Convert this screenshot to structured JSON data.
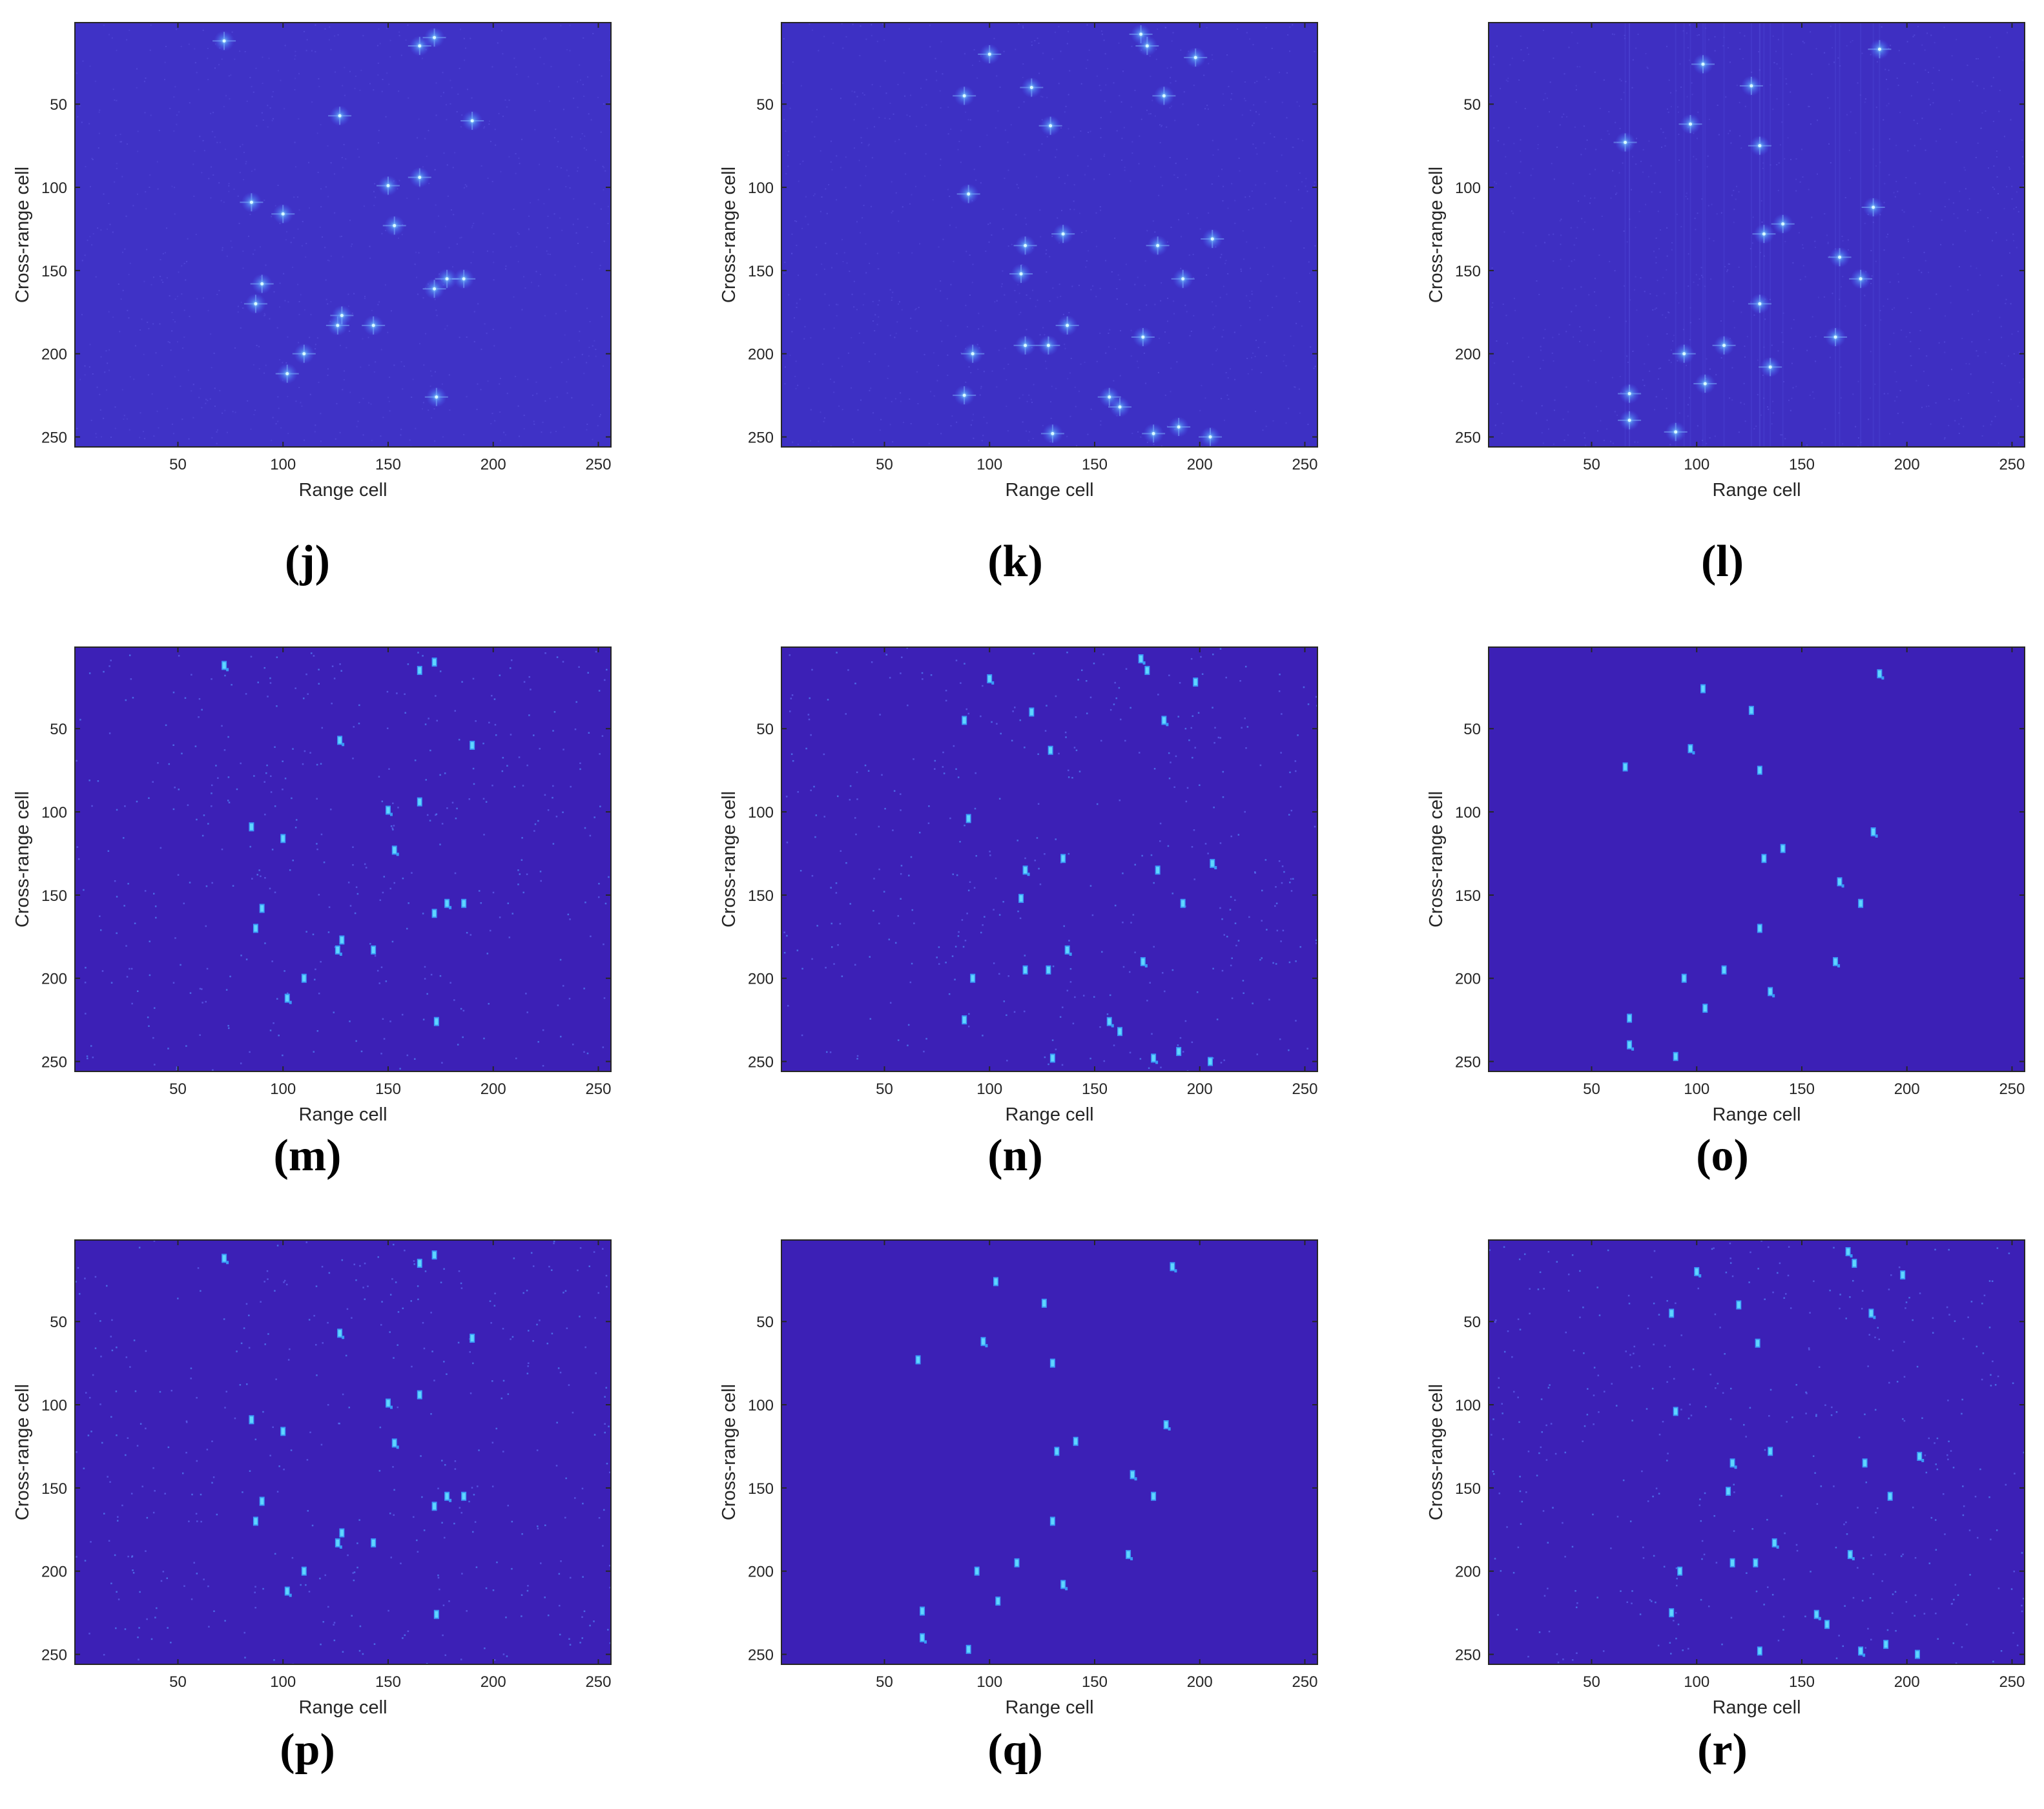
{
  "figure": {
    "colors": {
      "background_j": "#3f32c6",
      "background_k": "#3d30c4",
      "background_l": "#3e2fc2",
      "background_sparse": "#3c20b6",
      "scatter_bright": "#5fd6ff",
      "scatter_mid": "#3a98f6",
      "scatter_glow": "#6f8cff",
      "frame": "#262626"
    }
  },
  "chart_data": [
    {
      "id": "j",
      "label": "(j)",
      "type": "heatmap",
      "style": "diffuse",
      "xlabel": "Range cell",
      "ylabel": "Cross-range cell",
      "xlim": [
        1,
        256
      ],
      "ylim": [
        256,
        1
      ],
      "xticks": [
        50,
        100,
        150,
        200,
        250
      ],
      "yticks": [
        50,
        100,
        150,
        200,
        250
      ],
      "scatterers": [
        [
          72,
          12
        ],
        [
          165,
          15
        ],
        [
          172,
          10
        ],
        [
          127,
          57
        ],
        [
          190,
          60
        ],
        [
          165,
          94
        ],
        [
          150,
          99
        ],
        [
          85,
          109
        ],
        [
          100,
          116
        ],
        [
          153,
          123
        ],
        [
          90,
          158
        ],
        [
          172,
          161
        ],
        [
          178,
          155
        ],
        [
          186,
          155
        ],
        [
          87,
          170
        ],
        [
          126,
          183
        ],
        [
          143,
          183
        ],
        [
          110,
          200
        ],
        [
          102,
          212
        ],
        [
          173,
          226
        ],
        [
          128,
          177
        ]
      ]
    },
    {
      "id": "k",
      "label": "(k)",
      "type": "heatmap",
      "style": "diffuse",
      "xlabel": "Range cell",
      "ylabel": "Cross-range cell",
      "xlim": [
        1,
        256
      ],
      "ylim": [
        256,
        1
      ],
      "xticks": [
        50,
        100,
        150,
        200,
        250
      ],
      "yticks": [
        50,
        100,
        150,
        200,
        250
      ],
      "scatterers": [
        [
          172,
          8
        ],
        [
          175,
          15
        ],
        [
          198,
          22
        ],
        [
          100,
          20
        ],
        [
          120,
          40
        ],
        [
          88,
          45
        ],
        [
          183,
          45
        ],
        [
          129,
          63
        ],
        [
          90,
          104
        ],
        [
          117,
          135
        ],
        [
          135,
          128
        ],
        [
          180,
          135
        ],
        [
          206,
          131
        ],
        [
          192,
          155
        ],
        [
          115,
          152
        ],
        [
          137,
          183
        ],
        [
          117,
          195
        ],
        [
          128,
          195
        ],
        [
          173,
          190
        ],
        [
          92,
          200
        ],
        [
          88,
          225
        ],
        [
          157,
          226
        ],
        [
          162,
          232
        ],
        [
          130,
          248
        ],
        [
          178,
          248
        ],
        [
          190,
          244
        ],
        [
          205,
          250
        ]
      ]
    },
    {
      "id": "l",
      "label": "(l)",
      "type": "heatmap",
      "style": "diffuse",
      "xlabel": "Range cell",
      "ylabel": "Cross-range cell",
      "xlim": [
        1,
        256
      ],
      "ylim": [
        256,
        1
      ],
      "xticks": [
        50,
        100,
        150,
        200,
        250
      ],
      "yticks": [
        50,
        100,
        150,
        200,
        250
      ],
      "scatterers": [
        [
          187,
          17
        ],
        [
          103,
          26
        ],
        [
          126,
          39
        ],
        [
          97,
          62
        ],
        [
          66,
          73
        ],
        [
          130,
          75
        ],
        [
          184,
          112
        ],
        [
          132,
          128
        ],
        [
          141,
          122
        ],
        [
          168,
          142
        ],
        [
          178,
          155
        ],
        [
          130,
          170
        ],
        [
          166,
          190
        ],
        [
          113,
          195
        ],
        [
          94,
          200
        ],
        [
          135,
          208
        ],
        [
          104,
          218
        ],
        [
          68,
          224
        ],
        [
          68,
          240
        ],
        [
          90,
          247
        ]
      ]
    },
    {
      "id": "m",
      "label": "(m)",
      "type": "heatmap",
      "style": "sparse-noisy",
      "xlabel": "Range cell",
      "ylabel": "Cross-range cell",
      "xlim": [
        1,
        256
      ],
      "ylim": [
        256,
        1
      ],
      "xticks": [
        50,
        100,
        150,
        200,
        250
      ],
      "yticks": [
        50,
        100,
        150,
        200,
        250
      ],
      "scatterers": [
        [
          72,
          12
        ],
        [
          165,
          15
        ],
        [
          172,
          10
        ],
        [
          127,
          57
        ],
        [
          190,
          60
        ],
        [
          165,
          94
        ],
        [
          150,
          99
        ],
        [
          85,
          109
        ],
        [
          100,
          116
        ],
        [
          153,
          123
        ],
        [
          90,
          158
        ],
        [
          172,
          161
        ],
        [
          178,
          155
        ],
        [
          186,
          155
        ],
        [
          87,
          170
        ],
        [
          126,
          183
        ],
        [
          143,
          183
        ],
        [
          110,
          200
        ],
        [
          102,
          212
        ],
        [
          173,
          226
        ],
        [
          128,
          177
        ]
      ]
    },
    {
      "id": "n",
      "label": "(n)",
      "type": "heatmap",
      "style": "sparse-noisy",
      "xlabel": "Range cell",
      "ylabel": "Cross-range cell",
      "xlim": [
        1,
        256
      ],
      "ylim": [
        256,
        1
      ],
      "xticks": [
        50,
        100,
        150,
        200,
        250
      ],
      "yticks": [
        50,
        100,
        150,
        200,
        250
      ],
      "scatterers": [
        [
          172,
          8
        ],
        [
          175,
          15
        ],
        [
          198,
          22
        ],
        [
          100,
          20
        ],
        [
          120,
          40
        ],
        [
          88,
          45
        ],
        [
          183,
          45
        ],
        [
          129,
          63
        ],
        [
          90,
          104
        ],
        [
          117,
          135
        ],
        [
          135,
          128
        ],
        [
          180,
          135
        ],
        [
          206,
          131
        ],
        [
          192,
          155
        ],
        [
          115,
          152
        ],
        [
          137,
          183
        ],
        [
          117,
          195
        ],
        [
          128,
          195
        ],
        [
          173,
          190
        ],
        [
          92,
          200
        ],
        [
          88,
          225
        ],
        [
          157,
          226
        ],
        [
          162,
          232
        ],
        [
          130,
          248
        ],
        [
          178,
          248
        ],
        [
          190,
          244
        ],
        [
          205,
          250
        ]
      ]
    },
    {
      "id": "o",
      "label": "(o)",
      "type": "heatmap",
      "style": "sparse-clean",
      "xlabel": "Range cell",
      "ylabel": "Cross-range cell",
      "xlim": [
        1,
        256
      ],
      "ylim": [
        256,
        1
      ],
      "xticks": [
        50,
        100,
        150,
        200,
        250
      ],
      "yticks": [
        50,
        100,
        150,
        200,
        250
      ],
      "scatterers": [
        [
          187,
          17
        ],
        [
          103,
          26
        ],
        [
          126,
          39
        ],
        [
          97,
          62
        ],
        [
          66,
          73
        ],
        [
          130,
          75
        ],
        [
          184,
          112
        ],
        [
          132,
          128
        ],
        [
          141,
          122
        ],
        [
          168,
          142
        ],
        [
          178,
          155
        ],
        [
          130,
          170
        ],
        [
          166,
          190
        ],
        [
          113,
          195
        ],
        [
          94,
          200
        ],
        [
          135,
          208
        ],
        [
          104,
          218
        ],
        [
          68,
          224
        ],
        [
          68,
          240
        ],
        [
          90,
          247
        ]
      ]
    },
    {
      "id": "p",
      "label": "(p)",
      "type": "heatmap",
      "style": "sparse-noisy",
      "xlabel": "Range cell",
      "ylabel": "Cross-range cell",
      "xlim": [
        1,
        256
      ],
      "ylim": [
        256,
        1
      ],
      "xticks": [
        50,
        100,
        150,
        200,
        250
      ],
      "yticks": [
        50,
        100,
        150,
        200,
        250
      ],
      "scatterers": [
        [
          72,
          12
        ],
        [
          165,
          15
        ],
        [
          172,
          10
        ],
        [
          127,
          57
        ],
        [
          190,
          60
        ],
        [
          165,
          94
        ],
        [
          150,
          99
        ],
        [
          85,
          109
        ],
        [
          100,
          116
        ],
        [
          153,
          123
        ],
        [
          90,
          158
        ],
        [
          172,
          161
        ],
        [
          178,
          155
        ],
        [
          186,
          155
        ],
        [
          87,
          170
        ],
        [
          126,
          183
        ],
        [
          143,
          183
        ],
        [
          110,
          200
        ],
        [
          102,
          212
        ],
        [
          173,
          226
        ],
        [
          128,
          177
        ]
      ]
    },
    {
      "id": "q",
      "label": "(q)",
      "type": "heatmap",
      "style": "sparse-clean",
      "xlabel": "Range cell",
      "ylabel": "Cross-range cell",
      "xlim": [
        1,
        256
      ],
      "ylim": [
        256,
        1
      ],
      "xticks": [
        50,
        100,
        150,
        200,
        250
      ],
      "yticks": [
        50,
        100,
        150,
        200,
        250
      ],
      "scatterers": [
        [
          187,
          17
        ],
        [
          103,
          26
        ],
        [
          126,
          39
        ],
        [
          97,
          62
        ],
        [
          66,
          73
        ],
        [
          130,
          75
        ],
        [
          184,
          112
        ],
        [
          132,
          128
        ],
        [
          141,
          122
        ],
        [
          168,
          142
        ],
        [
          178,
          155
        ],
        [
          130,
          170
        ],
        [
          166,
          190
        ],
        [
          113,
          195
        ],
        [
          94,
          200
        ],
        [
          135,
          208
        ],
        [
          104,
          218
        ],
        [
          68,
          224
        ],
        [
          68,
          240
        ],
        [
          90,
          247
        ]
      ]
    },
    {
      "id": "r",
      "label": "(r)",
      "type": "heatmap",
      "style": "sparse-noisy",
      "xlabel": "Range cell",
      "ylabel": "Cross-range cell",
      "xlim": [
        1,
        256
      ],
      "ylim": [
        256,
        1
      ],
      "xticks": [
        50,
        100,
        150,
        200,
        250
      ],
      "yticks": [
        50,
        100,
        150,
        200,
        250
      ],
      "scatterers": [
        [
          172,
          8
        ],
        [
          175,
          15
        ],
        [
          198,
          22
        ],
        [
          100,
          20
        ],
        [
          120,
          40
        ],
        [
          88,
          45
        ],
        [
          183,
          45
        ],
        [
          129,
          63
        ],
        [
          90,
          104
        ],
        [
          117,
          135
        ],
        [
          135,
          128
        ],
        [
          180,
          135
        ],
        [
          206,
          131
        ],
        [
          192,
          155
        ],
        [
          115,
          152
        ],
        [
          137,
          183
        ],
        [
          117,
          195
        ],
        [
          128,
          195
        ],
        [
          173,
          190
        ],
        [
          92,
          200
        ],
        [
          88,
          225
        ],
        [
          157,
          226
        ],
        [
          162,
          232
        ],
        [
          130,
          248
        ],
        [
          178,
          248
        ],
        [
          190,
          244
        ],
        [
          205,
          250
        ]
      ]
    }
  ]
}
